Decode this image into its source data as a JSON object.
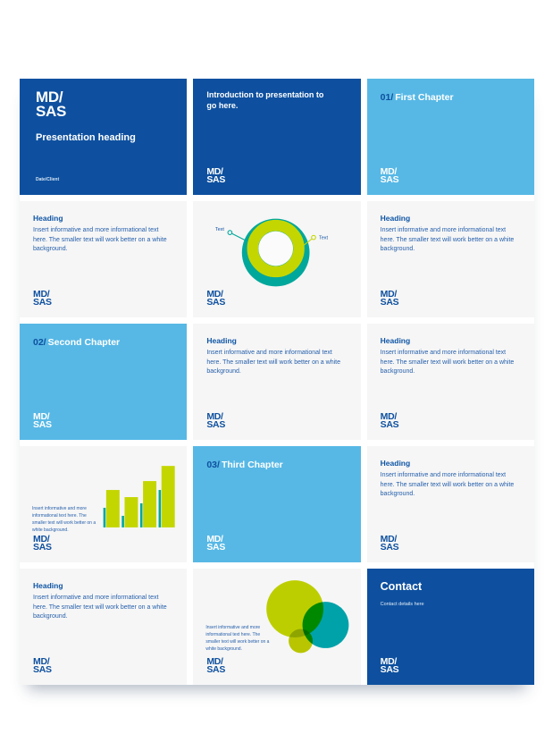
{
  "brand": {
    "logo": {
      "line1": "MD/",
      "line2": "SAS"
    },
    "colors": {
      "dark_blue": "#0e509f",
      "light_blue": "#57b8e5",
      "teal": "#00a79b",
      "chartreuse": "#c4d600",
      "slide_background": "#f6f6f6",
      "page_background": "#ffffff"
    }
  },
  "slides": [
    {
      "type": "title",
      "heading": "Presentation heading",
      "footer": "Date/Client"
    },
    {
      "type": "intro",
      "text": "Introduction to presentation to go here."
    },
    {
      "type": "chapter",
      "number": "01/",
      "title": "First Chapter"
    },
    {
      "type": "content",
      "heading": "Heading",
      "body": "Insert informative and more informational text here. The smaller text will work better on a white background."
    },
    {
      "type": "donut-chart",
      "callout_left": "Text",
      "callout_right": "Text"
    },
    {
      "type": "content",
      "heading": "Heading",
      "body": "Insert informative and more informational text here. The smaller text will work better on a white background."
    },
    {
      "type": "chapter",
      "number": "02/",
      "title": "Second Chapter"
    },
    {
      "type": "content",
      "heading": "Heading",
      "body": "Insert informative and more informational text here. The smaller text will work better on a white background."
    },
    {
      "type": "content",
      "heading": "Heading",
      "body": "Insert informative and more informational text here. The smaller text will work better on a white background."
    },
    {
      "type": "bar-chart",
      "caption": "Insert informative and more informational text here. The smaller text will work better on a white background."
    },
    {
      "type": "chapter",
      "number": "03/",
      "title": "Third Chapter"
    },
    {
      "type": "content",
      "heading": "Heading",
      "body": "Insert informative and more informational text here. The smaller text will work better on a white background."
    },
    {
      "type": "content",
      "heading": "Heading",
      "body": "Insert informative and more informational text here. The smaller text will work better on a white background."
    },
    {
      "type": "venn-diagram",
      "caption": "Insert informative and more informational text here. The smaller text will work better on a white background."
    },
    {
      "type": "contact",
      "heading": "Contact",
      "detail": "Contact details here"
    }
  ],
  "chart_data": [
    {
      "type": "pie",
      "subtype": "donut placeholder",
      "slide": 5,
      "segments": [
        {
          "label": "Text",
          "color": "#00a79b"
        },
        {
          "label": "Text",
          "color": "#c4d600"
        }
      ],
      "notes": "decorative placeholder donut; no numeric values shown, two leader-line callouts labelled Text"
    },
    {
      "type": "bar",
      "slide": 10,
      "categories": [
        "",
        "",
        "",
        ""
      ],
      "series": [
        {
          "name": "teal-accent",
          "color": "#00a79b",
          "values": [
            22,
            13,
            27,
            42
          ]
        },
        {
          "name": "chartreuse-main",
          "color": "#c4d600",
          "values": [
            42,
            34,
            52,
            69
          ]
        }
      ],
      "title": "",
      "xlabel": "",
      "ylabel": "",
      "ylim": [
        0,
        75
      ],
      "notes": "placeholder chart, no axes/ticks/labels shown; values are relative pixel heights"
    },
    {
      "type": "diagram",
      "subtype": "overlapping circles",
      "slide": 14,
      "circles": [
        {
          "color": "#c4d600",
          "relative_size": "large"
        },
        {
          "color": "#00a8b0",
          "relative_size": "medium"
        },
        {
          "color": "#bfcc00",
          "relative_size": "small"
        }
      ],
      "notes": "decorative multiply-blend circles, overlaps render green"
    }
  ]
}
